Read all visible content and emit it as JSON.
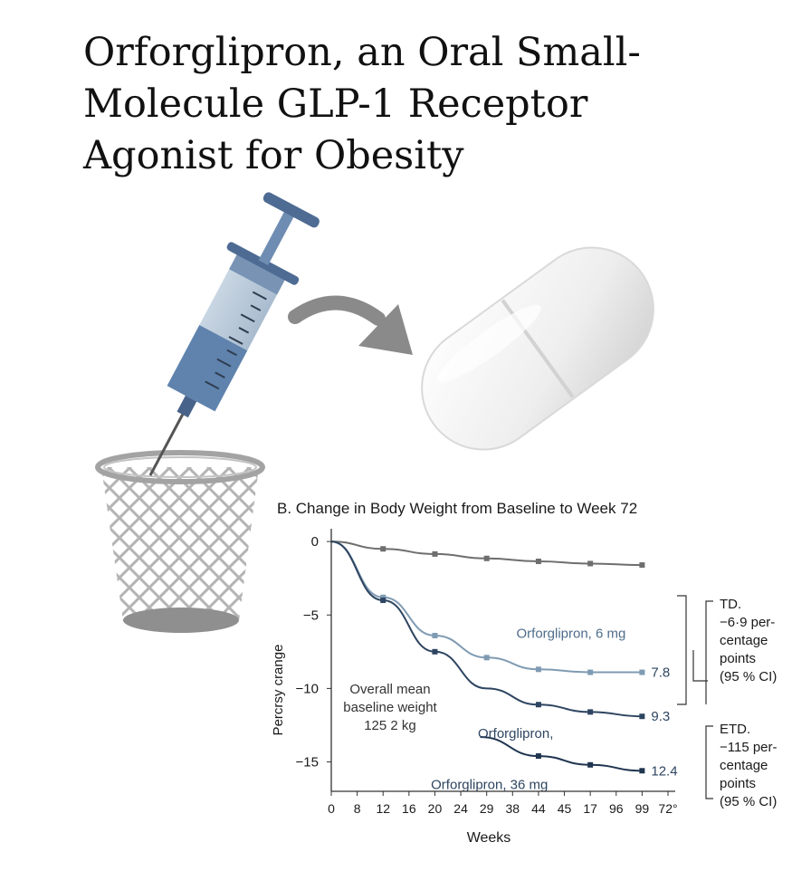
{
  "page": {
    "title_lines": [
      "Orforglipron, an Oral Small-",
      "Molecule GLP-1 Receptor",
      "Agonist for Obesity"
    ]
  },
  "illustration": {
    "icons": [
      "syringe-icon",
      "arrow-icon",
      "pill-icon",
      "waste-basket-icon"
    ],
    "colors": {
      "syringe": "#5f83ad",
      "arrow": "#8a8a8a",
      "pill": "#f0f0f0",
      "basket": "#9a9a9a"
    }
  },
  "chart_data": {
    "type": "line",
    "title": "B. Change in Body Weight from Baseline to Week 72",
    "xlabel": "Weeks",
    "ylabel": "Percrsy crange",
    "x_ticks": [
      "0",
      "8",
      "12",
      "16",
      "20",
      "24",
      "29",
      "38",
      "44",
      "45",
      "17",
      "96",
      "99",
      "72°"
    ],
    "y_ticks": [
      0,
      -5,
      -10,
      -15
    ],
    "ylim": [
      -17,
      0.5
    ],
    "annotation": {
      "lines": [
        "Overall mean",
        "baseline weight",
        "125 2 kg"
      ]
    },
    "series": [
      {
        "color": "#6e6e6e",
        "points": [
          [
            0,
            0
          ],
          [
            4,
            -0.5
          ],
          [
            8,
            -0.85
          ],
          [
            12,
            -1.15
          ],
          [
            16,
            -1.35
          ],
          [
            20,
            -1.5
          ],
          [
            24,
            -1.6
          ]
        ],
        "marker_x": [
          4,
          8,
          12,
          16,
          20,
          24
        ]
      },
      {
        "name": "Orforglipron, 6 mg",
        "color": "#7f9bb3",
        "points": [
          [
            0,
            0
          ],
          [
            4,
            -3.8
          ],
          [
            8,
            -6.4
          ],
          [
            12,
            -7.9
          ],
          [
            16,
            -8.7
          ],
          [
            20,
            -8.9
          ],
          [
            24,
            -8.9
          ]
        ],
        "marker_x": [
          4,
          8,
          12,
          16,
          20,
          24
        ],
        "end_label": "7.8"
      },
      {
        "name": "Orforglipron,",
        "color": "#2e4561",
        "points": [
          [
            0,
            0
          ],
          [
            4,
            -4.0
          ],
          [
            8,
            -7.5
          ],
          [
            12,
            -10.0
          ],
          [
            16,
            -11.1
          ],
          [
            20,
            -11.6
          ],
          [
            24,
            -11.9
          ]
        ],
        "marker_x": [
          4,
          8,
          16,
          20,
          24
        ],
        "end_label": "9.3"
      },
      {
        "name": "Orforglipron, 36 mg",
        "color": "#1f3550",
        "points": [
          [
            11.5,
            -13.3
          ],
          [
            16,
            -14.6
          ],
          [
            20,
            -15.2
          ],
          [
            24,
            -15.6
          ]
        ],
        "marker_x": [
          16,
          20,
          24
        ],
        "end_label": "12.4"
      }
    ],
    "etd_blocks": [
      {
        "lines": [
          "TD.",
          "−6·9 per-",
          "centage",
          "points",
          "(95 % CI)"
        ]
      },
      {
        "lines": [
          "ETD.",
          "−115 per-",
          "centage",
          "points",
          "(95 % CI)"
        ]
      }
    ]
  }
}
